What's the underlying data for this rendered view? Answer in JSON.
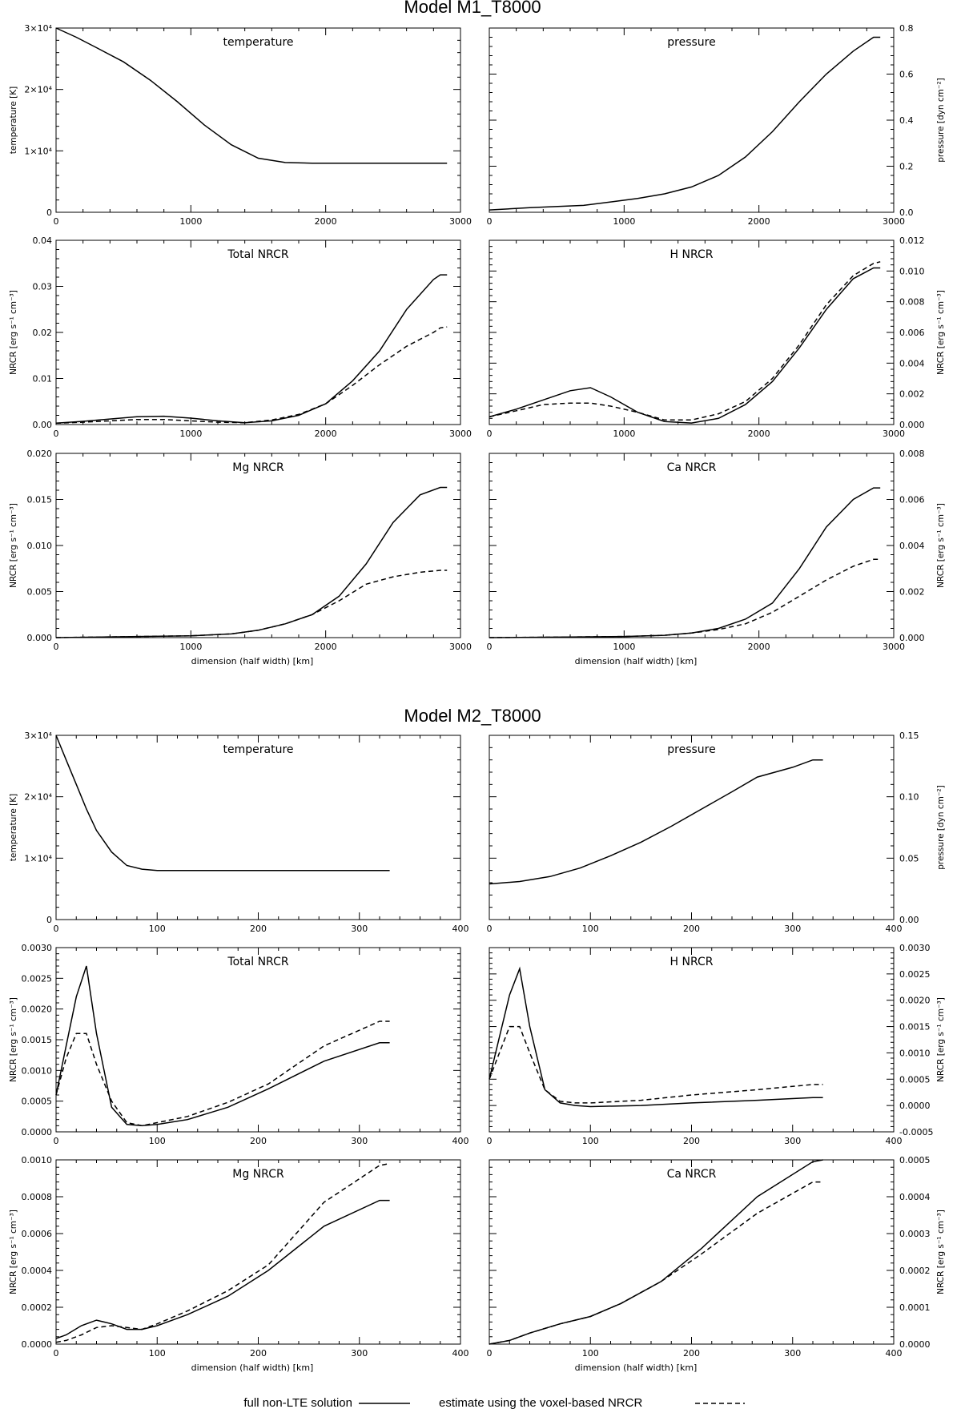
{
  "legend": {
    "solid_label": "full non-LTE solution",
    "dashed_label": "estimate using the voxel-based NRCR"
  },
  "models": [
    {
      "title": "Model M1_T8000",
      "xlabel": "dimension (half width) [km]",
      "xlim": [
        0,
        3000
      ],
      "xticks": [
        0,
        1000,
        2000,
        3000
      ],
      "panels": [
        {
          "id": "m1-temperature",
          "title": "temperature",
          "ylabel": "temperature [K]",
          "axis_side": "left",
          "ylim": [
            0,
            30000
          ],
          "yticks": [
            0,
            10000,
            20000,
            30000
          ],
          "ytick_labels": [
            "0",
            "1×10⁴",
            "2×10⁴",
            "3×10⁴"
          ],
          "x": [
            0,
            150,
            300,
            500,
            700,
            900,
            1100,
            1300,
            1500,
            1700,
            1900,
            2100,
            2300,
            2500,
            2700,
            2900
          ],
          "solid": [
            30000,
            28500,
            26800,
            24500,
            21500,
            18000,
            14200,
            11000,
            8800,
            8100,
            8000,
            8000,
            8000,
            8000,
            8000,
            8000
          ],
          "dashed": null
        },
        {
          "id": "m1-pressure",
          "title": "pressure",
          "ylabel": "pressure [dyn cm⁻²]",
          "axis_side": "right",
          "ylim": [
            0,
            0.8
          ],
          "yticks": [
            0.0,
            0.2,
            0.4,
            0.6,
            0.8
          ],
          "ytick_labels": [
            "0.0",
            "0.2",
            "0.4",
            "0.6",
            "0.8"
          ],
          "x": [
            0,
            300,
            700,
            900,
            1100,
            1300,
            1500,
            1700,
            1900,
            2100,
            2300,
            2500,
            2700,
            2850,
            2900
          ],
          "solid": [
            0.01,
            0.02,
            0.03,
            0.045,
            0.06,
            0.08,
            0.11,
            0.16,
            0.24,
            0.35,
            0.48,
            0.6,
            0.7,
            0.76,
            0.76
          ],
          "dashed": null
        },
        {
          "id": "m1-total-nrcr",
          "title": "Total NRCR",
          "ylabel": "NRCR [erg s⁻¹ cm⁻³]",
          "axis_side": "left",
          "ylim": [
            0,
            0.04
          ],
          "yticks": [
            0.0,
            0.01,
            0.02,
            0.03,
            0.04
          ],
          "ytick_labels": [
            "0.00",
            "0.01",
            "0.02",
            "0.03",
            "0.04"
          ],
          "x": [
            0,
            200,
            400,
            600,
            800,
            1000,
            1200,
            1400,
            1600,
            1800,
            2000,
            2200,
            2400,
            2600,
            2800,
            2850,
            2900
          ],
          "solid": [
            0.0003,
            0.0007,
            0.0012,
            0.0017,
            0.0018,
            0.0014,
            0.0008,
            0.0004,
            0.0008,
            0.002,
            0.0045,
            0.0095,
            0.016,
            0.025,
            0.0315,
            0.0325,
            0.0325
          ],
          "dashed": [
            0.0003,
            0.0005,
            0.0008,
            0.0011,
            0.0011,
            0.0008,
            0.0005,
            0.0004,
            0.001,
            0.0022,
            0.0045,
            0.0085,
            0.013,
            0.017,
            0.02,
            0.021,
            0.0212
          ]
        },
        {
          "id": "m1-h-nrcr",
          "title": "H NRCR",
          "ylabel": "NRCR [erg s⁻¹ cm⁻³]",
          "axis_side": "right",
          "ylim": [
            0,
            0.012
          ],
          "yticks": [
            0.0,
            0.002,
            0.004,
            0.006,
            0.008,
            0.01,
            0.012
          ],
          "ytick_labels": [
            "0.000",
            "0.002",
            "0.004",
            "0.006",
            "0.008",
            "0.010",
            "0.012"
          ],
          "x": [
            0,
            200,
            400,
            600,
            750,
            900,
            1100,
            1300,
            1500,
            1700,
            1900,
            2100,
            2300,
            2500,
            2700,
            2850,
            2900
          ],
          "solid": [
            0.0005,
            0.001,
            0.0016,
            0.0022,
            0.0024,
            0.0018,
            0.0008,
            0.0002,
            0.0001,
            0.0004,
            0.0013,
            0.0028,
            0.005,
            0.0075,
            0.0095,
            0.0102,
            0.0102
          ],
          "dashed": [
            0.0005,
            0.0009,
            0.0013,
            0.0014,
            0.0014,
            0.0012,
            0.0008,
            0.0003,
            0.0003,
            0.0007,
            0.0015,
            0.003,
            0.0052,
            0.0078,
            0.0097,
            0.0105,
            0.0106
          ]
        },
        {
          "id": "m1-mg-nrcr",
          "title": "Mg NRCR",
          "ylabel": "NRCR [erg s⁻¹ cm⁻³]",
          "axis_side": "left",
          "ylim": [
            0,
            0.02
          ],
          "yticks": [
            0.0,
            0.005,
            0.01,
            0.015,
            0.02
          ],
          "ytick_labels": [
            "0.000",
            "0.005",
            "0.010",
            "0.015",
            "0.020"
          ],
          "x": [
            0,
            500,
            1000,
            1300,
            1500,
            1700,
            1900,
            2100,
            2300,
            2500,
            2700,
            2850,
            2900
          ],
          "solid": [
            0,
            0.0001,
            0.0002,
            0.0004,
            0.0008,
            0.0015,
            0.0025,
            0.0045,
            0.008,
            0.0125,
            0.0155,
            0.0163,
            0.0163
          ],
          "dashed": [
            0,
            0.0001,
            0.0002,
            0.0004,
            0.0008,
            0.0015,
            0.0025,
            0.004,
            0.0058,
            0.0066,
            0.0071,
            0.0073,
            0.0073
          ]
        },
        {
          "id": "m1-ca-nrcr",
          "title": "Ca NRCR",
          "ylabel": "NRCR [erg s⁻¹ cm⁻³]",
          "axis_side": "right",
          "ylim": [
            0,
            0.008
          ],
          "yticks": [
            0.0,
            0.002,
            0.004,
            0.006,
            0.008
          ],
          "ytick_labels": [
            "0.000",
            "0.002",
            "0.004",
            "0.006",
            "0.008"
          ],
          "x": [
            0,
            500,
            1000,
            1300,
            1500,
            1700,
            1900,
            2100,
            2300,
            2500,
            2700,
            2850,
            2900
          ],
          "solid": [
            0,
            2e-05,
            5e-05,
            0.0001,
            0.0002,
            0.0004,
            0.0008,
            0.0015,
            0.003,
            0.0048,
            0.006,
            0.0065,
            0.0065
          ],
          "dashed": [
            0,
            2e-05,
            5e-05,
            0.0001,
            0.0002,
            0.00035,
            0.0006,
            0.0011,
            0.0018,
            0.0025,
            0.0031,
            0.0034,
            0.0034
          ]
        }
      ]
    },
    {
      "title": "Model M2_T8000",
      "xlabel": "dimension (half width) [km]",
      "xlim": [
        0,
        400
      ],
      "xticks": [
        0,
        100,
        200,
        300,
        400
      ],
      "panels": [
        {
          "id": "m2-temperature",
          "title": "temperature",
          "ylabel": "temperature [K]",
          "axis_side": "left",
          "ylim": [
            0,
            30000
          ],
          "yticks": [
            0,
            10000,
            20000,
            30000
          ],
          "ytick_labels": [
            "0",
            "1×10⁴",
            "2×10⁴",
            "3×10⁴"
          ],
          "x": [
            0,
            10,
            20,
            30,
            40,
            55,
            70,
            85,
            100,
            150,
            200,
            250,
            300,
            330
          ],
          "solid": [
            30000,
            26000,
            22000,
            18000,
            14500,
            11000,
            8800,
            8200,
            8000,
            8000,
            8000,
            8000,
            8000,
            8000
          ],
          "dashed": null
        },
        {
          "id": "m2-pressure",
          "title": "pressure",
          "ylabel": "pressure [dyn cm⁻²]",
          "axis_side": "right",
          "ylim": [
            0,
            0.15
          ],
          "yticks": [
            0.0,
            0.05,
            0.1,
            0.15
          ],
          "ytick_labels": [
            "0.00",
            "0.05",
            "0.10",
            "0.15"
          ],
          "x": [
            0,
            30,
            60,
            90,
            120,
            150,
            180,
            210,
            240,
            265,
            300,
            320,
            330
          ],
          "solid": [
            0.029,
            0.031,
            0.035,
            0.042,
            0.052,
            0.063,
            0.076,
            0.09,
            0.104,
            0.116,
            0.124,
            0.13,
            0.13
          ],
          "dashed": null
        },
        {
          "id": "m2-total-nrcr",
          "title": "Total NRCR",
          "ylabel": "NRCR [erg s⁻¹ cm⁻³]",
          "axis_side": "left",
          "ylim": [
            0,
            0.003
          ],
          "yticks": [
            0.0,
            0.0005,
            0.001,
            0.0015,
            0.002,
            0.0025,
            0.003
          ],
          "ytick_labels": [
            "0.0000",
            "0.0005",
            "0.0010",
            "0.0015",
            "0.0020",
            "0.0025",
            "0.0030"
          ],
          "x": [
            0,
            10,
            20,
            30,
            40,
            55,
            70,
            85,
            100,
            130,
            170,
            210,
            265,
            320,
            330
          ],
          "solid": [
            0.0006,
            0.0014,
            0.0022,
            0.0027,
            0.0016,
            0.0004,
            0.00012,
            0.0001,
            0.00012,
            0.0002,
            0.0004,
            0.0007,
            0.00115,
            0.00145,
            0.00145
          ],
          "dashed": [
            0.0006,
            0.0012,
            0.0016,
            0.0016,
            0.0011,
            0.0005,
            0.00015,
            0.0001,
            0.00015,
            0.00025,
            0.00048,
            0.00078,
            0.0014,
            0.0018,
            0.0018
          ]
        },
        {
          "id": "m2-h-nrcr",
          "title": "H NRCR",
          "ylabel": "NRCR [erg s⁻¹ cm⁻³]",
          "axis_side": "right",
          "ylim": [
            -0.0005,
            0.003
          ],
          "yticks": [
            -0.0005,
            0.0,
            0.0005,
            0.001,
            0.0015,
            0.002,
            0.0025,
            0.003
          ],
          "ytick_labels": [
            "-0.0005",
            "0.0000",
            "0.0005",
            "0.0010",
            "0.0015",
            "0.0020",
            "0.0025",
            "0.0030"
          ],
          "x": [
            0,
            10,
            20,
            30,
            40,
            55,
            70,
            85,
            100,
            150,
            200,
            265,
            320,
            330
          ],
          "solid": [
            0.0005,
            0.0013,
            0.0021,
            0.0026,
            0.0015,
            0.0003,
            5e-05,
            0.0,
            -2e-05,
            0.0,
            5e-05,
            0.0001,
            0.00015,
            0.00015
          ],
          "dashed": [
            0.0005,
            0.001,
            0.0015,
            0.0015,
            0.001,
            0.0003,
            8e-05,
            5e-05,
            5e-05,
            0.0001,
            0.0002,
            0.0003,
            0.0004,
            0.0004
          ]
        },
        {
          "id": "m2-mg-nrcr",
          "title": "Mg NRCR",
          "ylabel": "NRCR [erg s⁻¹ cm⁻³]",
          "axis_side": "left",
          "ylim": [
            0,
            0.001
          ],
          "yticks": [
            0.0,
            0.0002,
            0.0004,
            0.0006,
            0.0008,
            0.001
          ],
          "ytick_labels": [
            "0.0000",
            "0.0002",
            "0.0004",
            "0.0006",
            "0.0008",
            "0.0010"
          ],
          "x": [
            0,
            10,
            25,
            40,
            55,
            70,
            85,
            100,
            130,
            170,
            210,
            265,
            320,
            330
          ],
          "solid": [
            3e-05,
            5e-05,
            0.0001,
            0.00013,
            0.00011,
            8e-05,
            8e-05,
            0.0001,
            0.00016,
            0.00026,
            0.0004,
            0.00064,
            0.00078,
            0.00078
          ],
          "dashed": [
            1e-05,
            2e-05,
            5e-05,
            9e-05,
            0.0001,
            9e-05,
            8e-05,
            0.00011,
            0.00018,
            0.00029,
            0.00043,
            0.00077,
            0.00097,
            0.00098
          ]
        },
        {
          "id": "m2-ca-nrcr",
          "title": "Ca NRCR",
          "ylabel": "NRCR [erg s⁻¹ cm⁻³]",
          "axis_side": "right",
          "ylim": [
            0,
            0.0005
          ],
          "yticks": [
            0.0,
            0.0001,
            0.0002,
            0.0003,
            0.0004,
            0.0005
          ],
          "ytick_labels": [
            "0.0000",
            "0.0001",
            "0.0002",
            "0.0003",
            "0.0004",
            "0.0005"
          ],
          "x": [
            0,
            20,
            40,
            70,
            100,
            130,
            170,
            210,
            265,
            320,
            330
          ],
          "solid": [
            0,
            1e-05,
            3e-05,
            5.5e-05,
            7.5e-05,
            0.00011,
            0.00017,
            0.00026,
            0.0004,
            0.000495,
            0.0005
          ],
          "dashed": [
            0,
            1e-05,
            3e-05,
            5.5e-05,
            7.5e-05,
            0.00011,
            0.00017,
            0.000245,
            0.000355,
            0.00044,
            0.00044
          ]
        }
      ]
    }
  ]
}
